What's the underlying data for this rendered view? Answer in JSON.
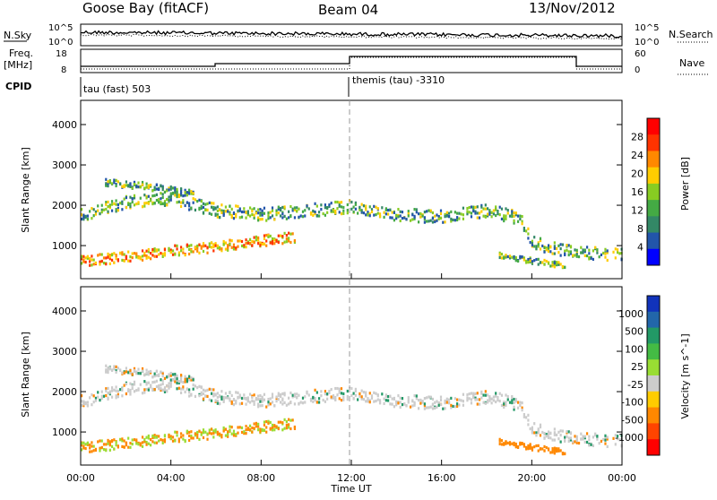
{
  "header": {
    "station": "Goose Bay (fitACF)",
    "beam": "Beam 04",
    "date": "13/Nov/2012"
  },
  "top_panels": {
    "noise": {
      "left_label": "N.Sky",
      "right_label": "N.Search",
      "left_ticks": [
        "10^5",
        "10^0"
      ],
      "right_ticks": [
        "10^5",
        "10^0"
      ]
    },
    "freq": {
      "left_label_1": "Freq.",
      "left_label_2": "[MHz]",
      "right_label": "Nave",
      "left_ticks": [
        "18",
        "8"
      ],
      "right_ticks": [
        "60",
        "0"
      ]
    },
    "cpid": {
      "label": "CPID",
      "mode_1": "tau (fast) 503",
      "mode_2": "themis (tau) -3310"
    }
  },
  "power_panel": {
    "ylabel": "Slant Range [km]",
    "colorbar_label": "Power [dB]",
    "colorbar_ticks": [
      "28",
      "24",
      "20",
      "16",
      "12",
      "8",
      "4"
    ],
    "colorbar_colors": [
      "#ff0000",
      "#ff3300",
      "#ff8800",
      "#ffcc00",
      "#88cc22",
      "#44aa44",
      "#338866",
      "#2255aa",
      "#0000ff"
    ]
  },
  "velocity_panel": {
    "ylabel": "Slant Range [km]",
    "colorbar_label": "Velocity [m s^-1]",
    "colorbar_ticks": [
      "1000",
      "500",
      "100",
      "25",
      "-25",
      "-100",
      "-500",
      "-1000"
    ],
    "colorbar_colors": [
      "#1133bb",
      "#2266aa",
      "#229966",
      "#44bb44",
      "#99dd33",
      "#cccccc",
      "#ffcc00",
      "#ff8800",
      "#ff4400",
      "#ff0000"
    ]
  },
  "xaxis": {
    "label": "Time UT",
    "ticks": [
      "00:00",
      "04:00",
      "08:00",
      "12:00",
      "16:00",
      "20:00",
      "00:00"
    ]
  },
  "chart_data": {
    "type": "heatmap",
    "x": [
      "00:00",
      "04:00",
      "08:00",
      "12:00",
      "16:00",
      "20:00",
      "00:00"
    ],
    "xlabel": "Time UT",
    "ylabel": "Slant Range [km]",
    "ylim": [
      180,
      4600
    ],
    "yticks": [
      1000,
      2000,
      3000,
      4000
    ],
    "panels": [
      "Power [dB]",
      "Velocity [m s^-1]"
    ],
    "power_colorbar_range": [
      0,
      30
    ],
    "velocity_colorbar_range": [
      -1000,
      1000
    ],
    "freq_range_MHz": [
      8,
      18
    ],
    "nave_range": [
      0,
      60
    ],
    "noise_range": [
      "10^0",
      "10^5"
    ]
  }
}
